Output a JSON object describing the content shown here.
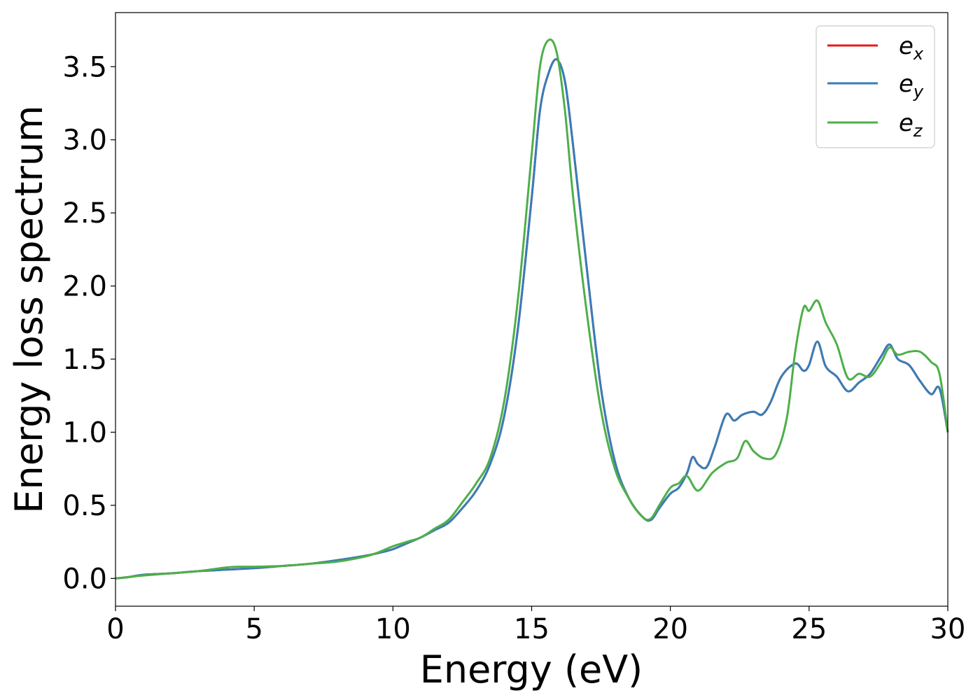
{
  "chart_data": {
    "type": "line",
    "xlabel": "Energy (eV)",
    "ylabel": "Energy loss spectrum",
    "xlim": [
      0,
      30
    ],
    "ylim": [
      -0.19,
      3.87
    ],
    "xticks": [
      0,
      5,
      10,
      15,
      20,
      25,
      30
    ],
    "yticks": [
      0.0,
      0.5,
      1.0,
      1.5,
      2.0,
      2.5,
      3.0,
      3.5
    ],
    "xtick_labels": [
      "0",
      "5",
      "10",
      "15",
      "20",
      "25",
      "30"
    ],
    "ytick_labels": [
      "0.0",
      "0.5",
      "1.0",
      "1.5",
      "2.0",
      "2.5",
      "3.0",
      "3.5"
    ],
    "grid": false,
    "legend_position": "top-right",
    "series": [
      {
        "name": "e_x",
        "label_base": "e",
        "label_sub": "x",
        "color": "#e41a1c",
        "x": [
          0,
          0.5,
          1,
          2,
          3,
          4,
          5,
          6,
          7,
          8,
          9,
          9.5,
          10,
          10.5,
          11,
          11.5,
          12,
          12.5,
          13,
          13.5,
          14,
          14.5,
          15,
          15.3,
          15.6,
          15.9,
          16.2,
          16.5,
          17,
          17.5,
          18,
          18.5,
          19,
          19.3,
          19.6,
          20,
          20.3,
          20.6,
          20.8,
          21,
          21.3,
          21.6,
          22,
          22.3,
          22.6,
          23,
          23.3,
          23.6,
          24,
          24.5,
          24.8,
          25,
          25.3,
          25.6,
          26,
          26.4,
          26.8,
          27.2,
          27.6,
          27.9,
          28.2,
          28.6,
          29,
          29.4,
          29.7,
          30
        ],
        "y": [
          0.0,
          0.01,
          0.025,
          0.035,
          0.05,
          0.06,
          0.07,
          0.085,
          0.1,
          0.125,
          0.155,
          0.175,
          0.2,
          0.24,
          0.28,
          0.33,
          0.38,
          0.48,
          0.6,
          0.78,
          1.1,
          1.7,
          2.6,
          3.2,
          3.45,
          3.55,
          3.4,
          2.95,
          2.1,
          1.3,
          0.8,
          0.55,
          0.42,
          0.4,
          0.48,
          0.58,
          0.62,
          0.72,
          0.83,
          0.78,
          0.76,
          0.9,
          1.12,
          1.08,
          1.12,
          1.14,
          1.12,
          1.2,
          1.38,
          1.47,
          1.42,
          1.46,
          1.62,
          1.45,
          1.38,
          1.28,
          1.34,
          1.4,
          1.52,
          1.6,
          1.5,
          1.46,
          1.35,
          1.26,
          1.3,
          1.0
        ]
      },
      {
        "name": "e_y",
        "label_base": "e",
        "label_sub": "y",
        "color": "#377eb8",
        "x": [
          0,
          0.5,
          1,
          2,
          3,
          4,
          5,
          6,
          7,
          8,
          9,
          9.5,
          10,
          10.5,
          11,
          11.5,
          12,
          12.5,
          13,
          13.5,
          14,
          14.5,
          15,
          15.3,
          15.6,
          15.9,
          16.2,
          16.5,
          17,
          17.5,
          18,
          18.5,
          19,
          19.3,
          19.6,
          20,
          20.3,
          20.6,
          20.8,
          21,
          21.3,
          21.6,
          22,
          22.3,
          22.6,
          23,
          23.3,
          23.6,
          24,
          24.5,
          24.8,
          25,
          25.3,
          25.6,
          26,
          26.4,
          26.8,
          27.2,
          27.6,
          27.9,
          28.2,
          28.6,
          29,
          29.4,
          29.7,
          30
        ],
        "y": [
          0.0,
          0.01,
          0.025,
          0.035,
          0.05,
          0.06,
          0.07,
          0.085,
          0.1,
          0.125,
          0.155,
          0.175,
          0.2,
          0.24,
          0.28,
          0.33,
          0.38,
          0.48,
          0.6,
          0.78,
          1.1,
          1.7,
          2.6,
          3.2,
          3.45,
          3.55,
          3.4,
          2.95,
          2.1,
          1.3,
          0.8,
          0.55,
          0.42,
          0.4,
          0.48,
          0.58,
          0.62,
          0.72,
          0.83,
          0.78,
          0.76,
          0.9,
          1.12,
          1.08,
          1.12,
          1.14,
          1.12,
          1.2,
          1.38,
          1.47,
          1.42,
          1.46,
          1.62,
          1.45,
          1.38,
          1.28,
          1.34,
          1.4,
          1.52,
          1.6,
          1.5,
          1.46,
          1.35,
          1.26,
          1.3,
          1.0
        ]
      },
      {
        "name": "e_z",
        "label_base": "e",
        "label_sub": "z",
        "color": "#4daf4a",
        "x": [
          0,
          0.5,
          1,
          2,
          3,
          4,
          4.5,
          5,
          6,
          7,
          8,
          9,
          9.5,
          10,
          10.5,
          11,
          11.5,
          12,
          12.5,
          13,
          13.5,
          14,
          14.5,
          15,
          15.3,
          15.6,
          15.9,
          16.2,
          16.5,
          17,
          17.5,
          18,
          18.5,
          19,
          19.3,
          19.6,
          20,
          20.3,
          20.6,
          21,
          21.5,
          22,
          22.4,
          22.7,
          23,
          23.4,
          23.8,
          24.2,
          24.5,
          24.8,
          25,
          25.3,
          25.6,
          26,
          26.4,
          26.8,
          27.2,
          27.6,
          27.9,
          28.2,
          28.6,
          29,
          29.4,
          29.7,
          30
        ],
        "y": [
          0.0,
          0.01,
          0.02,
          0.035,
          0.05,
          0.075,
          0.08,
          0.08,
          0.085,
          0.1,
          0.115,
          0.15,
          0.18,
          0.22,
          0.25,
          0.28,
          0.34,
          0.4,
          0.52,
          0.65,
          0.82,
          1.2,
          1.9,
          2.9,
          3.5,
          3.68,
          3.6,
          3.2,
          2.6,
          1.8,
          1.15,
          0.75,
          0.55,
          0.42,
          0.41,
          0.5,
          0.62,
          0.65,
          0.7,
          0.6,
          0.72,
          0.79,
          0.82,
          0.94,
          0.87,
          0.82,
          0.85,
          1.1,
          1.55,
          1.85,
          1.83,
          1.9,
          1.75,
          1.6,
          1.37,
          1.4,
          1.38,
          1.48,
          1.58,
          1.53,
          1.55,
          1.55,
          1.48,
          1.4,
          1.0
        ]
      }
    ]
  }
}
